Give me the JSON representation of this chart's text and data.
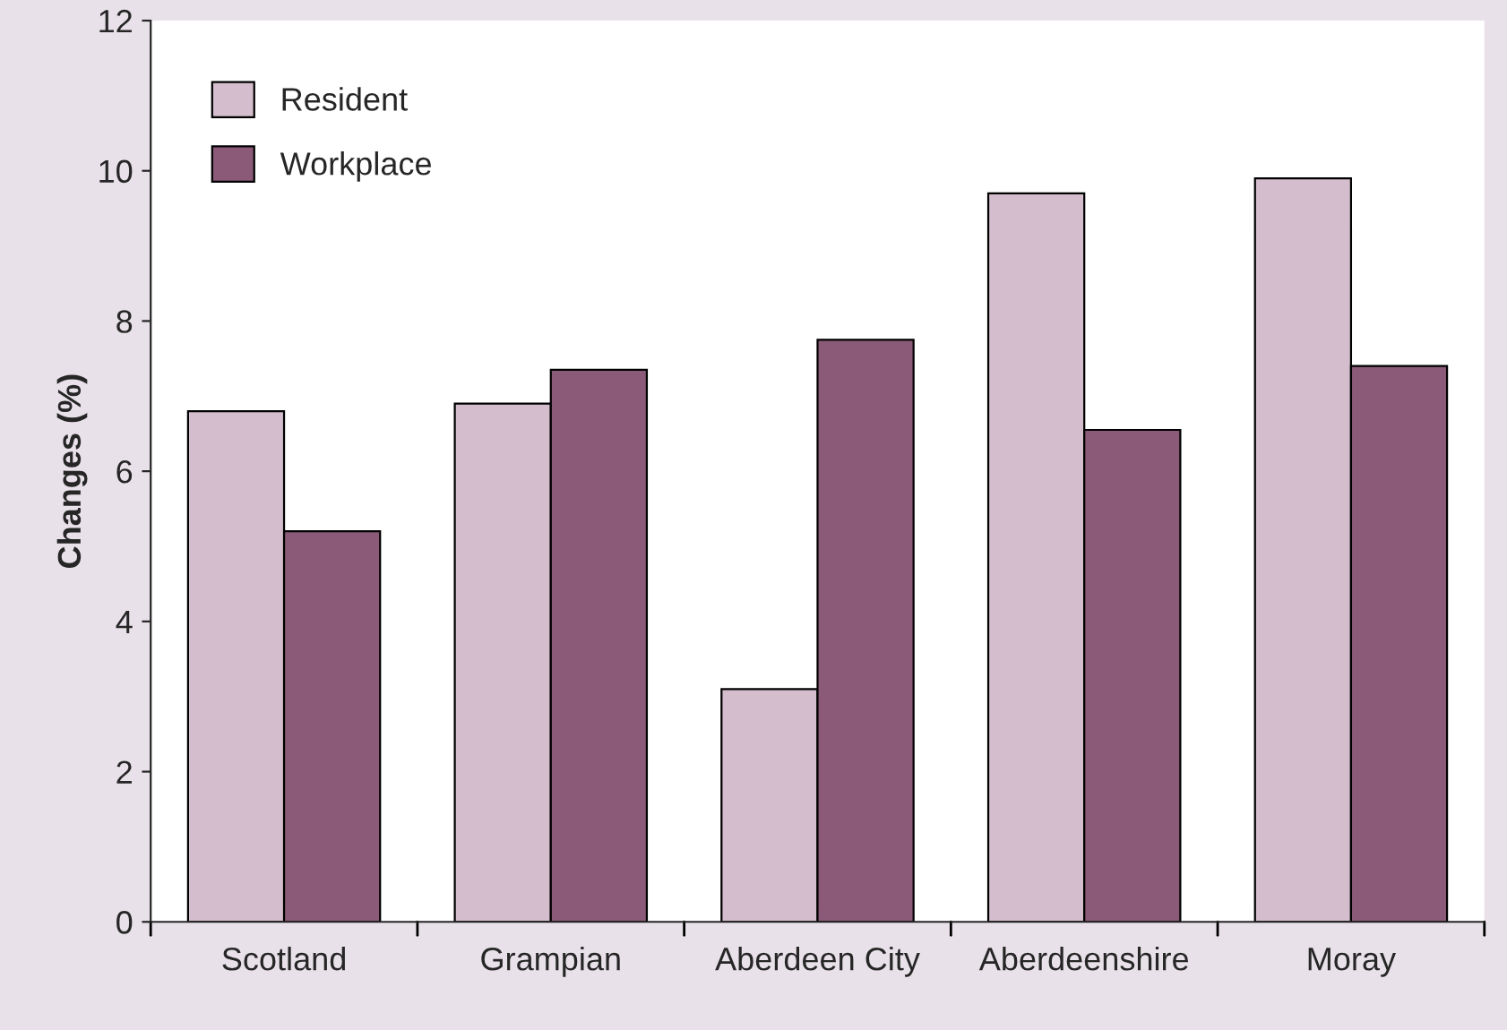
{
  "chart_data": {
    "type": "bar",
    "ylabel": "Changes (%)",
    "categories": [
      "Scotland",
      "Grampian",
      "Aberdeen City",
      "Aberdeenshire",
      "Moray"
    ],
    "series": [
      {
        "name": "Resident",
        "color": "#d4bdcc",
        "values": [
          6.8,
          6.9,
          3.1,
          9.7,
          9.9
        ]
      },
      {
        "name": "Workplace",
        "color": "#8a5a78",
        "values": [
          5.2,
          7.35,
          7.75,
          6.55,
          7.4
        ]
      }
    ],
    "ylim": [
      0,
      12
    ],
    "yticks": [
      0,
      2,
      4,
      6,
      8,
      10,
      12
    ],
    "grid": false,
    "legend": "top left"
  }
}
